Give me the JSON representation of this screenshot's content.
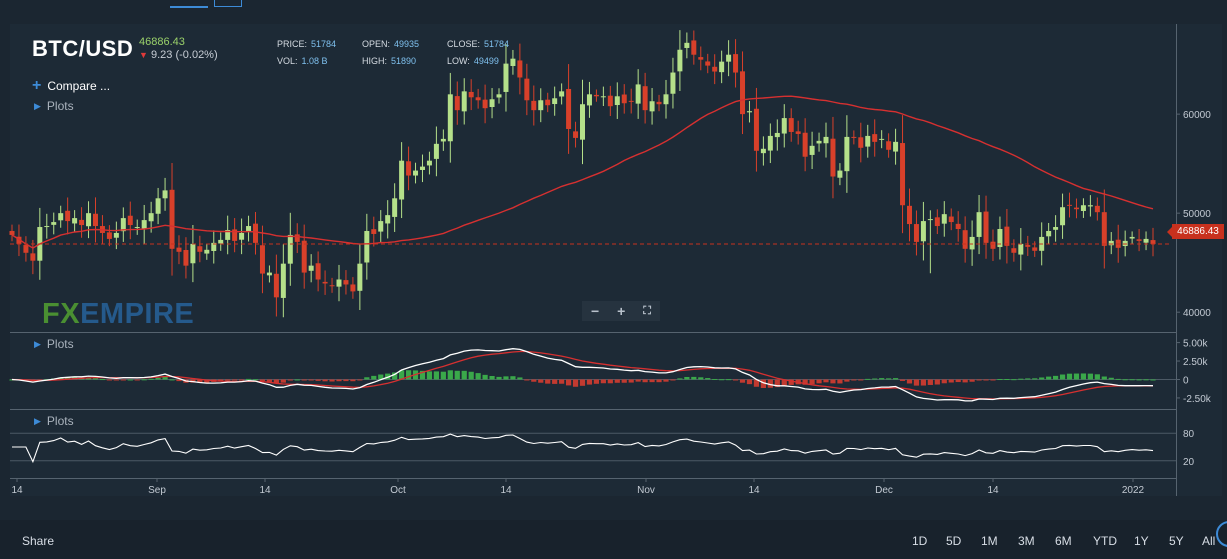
{
  "header": {
    "symbol": "BTC/USD",
    "last": "46886.43",
    "change": "9.23 (-0.02%)",
    "ohlc": [
      {
        "label": "PRICE:",
        "value": "51784"
      },
      {
        "label": "OPEN:",
        "value": "49935"
      },
      {
        "label": "CLOSE:",
        "value": "51784"
      },
      {
        "label": "VOL:",
        "value": "1.08 B"
      },
      {
        "label": "HIGH:",
        "value": "51890"
      },
      {
        "label": "LOW:",
        "value": "49499"
      }
    ]
  },
  "sidebar": {
    "compare": "Compare ...",
    "plots": "Plots"
  },
  "watermark": {
    "fx": "FX",
    "empire": "EMPIRE"
  },
  "price_tag": "46886.43",
  "toolbar": {
    "share": "Share",
    "ranges": [
      "1D",
      "5D",
      "1M",
      "3M",
      "6M",
      "YTD",
      "1Y",
      "5Y",
      "All"
    ]
  },
  "colors": {
    "up": "#b5e08a",
    "down": "#d8402a",
    "ma": "#d63030",
    "macd": "#ffffff",
    "signal": "#d63030",
    "hist_up": "#3aa84a",
    "hist_down": "#c23a30",
    "rsi": "#ffffff",
    "grid": "#34414d",
    "bg": "#1d2a36"
  },
  "chart_data": [
    {
      "type": "candlestick",
      "symbol": "BTC/USD",
      "x_tick_labels": [
        "14",
        "Sep",
        "14",
        "Oct",
        "14",
        "Nov",
        "14",
        "Dec",
        "14",
        "2022"
      ],
      "y_ticks": [
        40000,
        50000,
        60000
      ],
      "y_tick_labels": [
        "40000",
        "50000",
        "60000"
      ],
      "ylim": [
        38000,
        69000
      ],
      "last_price": 46886.43,
      "close": [
        47800,
        46900,
        46000,
        45200,
        48600,
        48700,
        49100,
        50000,
        49200,
        49500,
        48800,
        50000,
        48700,
        48000,
        47400,
        48000,
        49500,
        48800,
        48600,
        49300,
        50000,
        51500,
        52300,
        46400,
        46100,
        44700,
        46900,
        46100,
        46300,
        47000,
        47300,
        48300,
        47200,
        48000,
        48700,
        47000,
        43900,
        44000,
        41500,
        44900,
        47800,
        47100,
        44000,
        44700,
        43300,
        42900,
        42700,
        43300,
        42800,
        42100,
        44900,
        48200,
        47900,
        49200,
        49800,
        51500,
        55300,
        53800,
        54300,
        54700,
        55300,
        57000,
        57500,
        62000,
        60400,
        62300,
        61700,
        61400,
        60600,
        61500,
        62000,
        65100,
        65600,
        63700,
        61400,
        60400,
        61400,
        60900,
        61600,
        62300,
        58500,
        57600,
        61000,
        62000,
        61800,
        61800,
        60800,
        61800,
        61100,
        61300,
        63000,
        60400,
        61300,
        61000,
        62000,
        64200,
        66500,
        67200,
        66000,
        65500,
        64900,
        64300,
        65300,
        66000,
        64200,
        60000,
        60300,
        56300,
        56500,
        57800,
        58100,
        59600,
        58200,
        58000,
        55700,
        56800,
        57300,
        57700,
        53700,
        54300,
        57700,
        57600,
        56600,
        57800,
        57200,
        57500,
        56400,
        57200,
        50800,
        48900,
        47100,
        49200,
        49400,
        48700,
        49900,
        49100,
        48400,
        46400,
        47600,
        50100,
        47000,
        46400,
        48400,
        46700,
        46000,
        46900,
        46600,
        46200,
        47600,
        48200,
        48600,
        50600,
        50800,
        50400,
        50800,
        50800,
        50100,
        46700,
        47200,
        46500,
        47200,
        47600,
        47200,
        47400,
        46886
      ]
    },
    {
      "type": "line",
      "name": "MACD",
      "y_ticks": [
        5000,
        2500,
        0,
        -2500
      ],
      "y_tick_labels": [
        "5.00k",
        "2.50k",
        "0",
        "-2.50k"
      ],
      "ylim": [
        -4000,
        6300
      ]
    },
    {
      "type": "line",
      "name": "RSI",
      "y_ticks": [
        80,
        20
      ],
      "y_tick_labels": [
        "80",
        "20"
      ],
      "ylim": [
        0,
        100
      ]
    }
  ]
}
